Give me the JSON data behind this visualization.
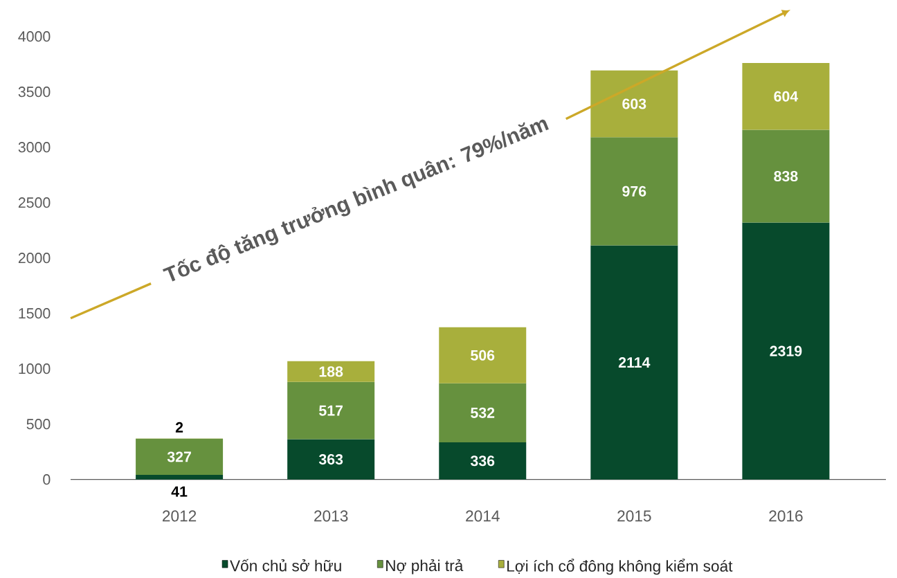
{
  "chart_data": {
    "type": "bar",
    "stacked": true,
    "categories": [
      "2012",
      "2013",
      "2014",
      "2015",
      "2016"
    ],
    "series": [
      {
        "name": "Vốn chủ sở hữu",
        "color": "#074a2c",
        "values": [
          41,
          363,
          336,
          2114,
          2319
        ]
      },
      {
        "name": "Nợ phải trả",
        "color": "#66913e",
        "values": [
          327,
          517,
          532,
          976,
          838
        ]
      },
      {
        "name": "Lợi ích cổ đông không kiểm soát",
        "color": "#a8af3c",
        "values": [
          2,
          188,
          506,
          603,
          604
        ]
      }
    ],
    "ylim": [
      0,
      4000
    ],
    "yticks": [
      0,
      500,
      1000,
      1500,
      2000,
      2500,
      3000,
      3500,
      4000
    ],
    "data_labels": true,
    "legend": "bottom",
    "annotations": [
      "Tốc độ tăng trưởng bình quân: 79%/năm"
    ]
  }
}
